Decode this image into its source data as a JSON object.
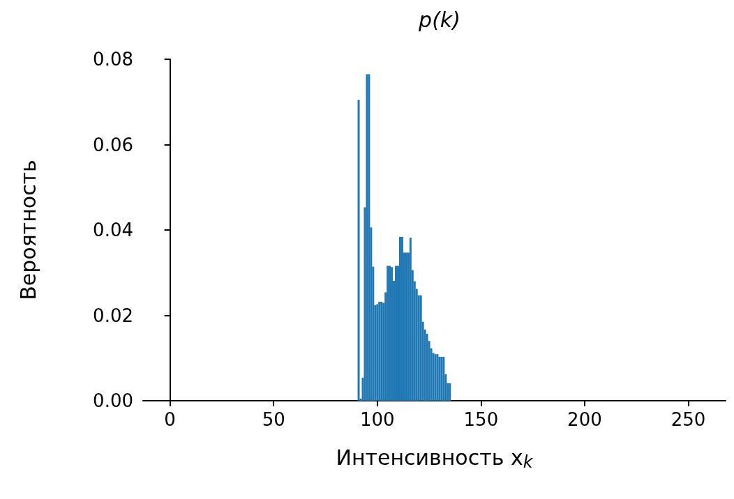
{
  "chart_data": {
    "type": "histogram",
    "title": "p(k)",
    "xlabel": "Интенсивность x$_{k}$",
    "ylabel": "Вероятность",
    "color": "#1f77b4",
    "bins": [
      90.5,
      91.5,
      92.5,
      93.5,
      94.5,
      95.5,
      96.5,
      97.5,
      98.5,
      99.5,
      100.5,
      101.5,
      102.5,
      103.5,
      104.5,
      105.5,
      106.5,
      107.5,
      108.5,
      109.5,
      110.5,
      111.5,
      112.5,
      113.5,
      114.5,
      115.5,
      116.5,
      117.5,
      118.5,
      119.5,
      120.5,
      121.5,
      122.5,
      123.5,
      124.5,
      125.5,
      126.5,
      127.5,
      128.5,
      129.5,
      130.5,
      131.5,
      132.5,
      133.5,
      134.5,
      135.5
    ],
    "values": [
      0.0705,
      0.0005,
      0.0054,
      0.0453,
      0.0765,
      0.0765,
      0.0406,
      0.0314,
      0.0224,
      0.0226,
      0.0232,
      0.0232,
      0.0229,
      0.0254,
      0.0316,
      0.0316,
      0.0313,
      0.0281,
      0.0316,
      0.0316,
      0.0384,
      0.0384,
      0.0347,
      0.0347,
      0.0347,
      0.0382,
      0.0306,
      0.028,
      0.0262,
      0.0247,
      0.0247,
      0.0185,
      0.0167,
      0.0157,
      0.014,
      0.0123,
      0.0112,
      0.0109,
      0.0109,
      0.0103,
      0.0103,
      0.0103,
      0.0062,
      0.0041,
      0.0041
    ],
    "xlim": [
      -13,
      268
    ],
    "xticks": [
      0,
      50,
      100,
      150,
      200,
      250
    ],
    "ylim": [
      0,
      0.08
    ],
    "yticks": [
      {
        "value": 0,
        "label": "0.00"
      },
      {
        "value": 0.02,
        "label": "0.02"
      },
      {
        "value": 0.04,
        "label": "0.04"
      },
      {
        "value": 0.06,
        "label": "0.06"
      },
      {
        "value": 0.08,
        "label": "0.08"
      }
    ],
    "grid": false
  }
}
